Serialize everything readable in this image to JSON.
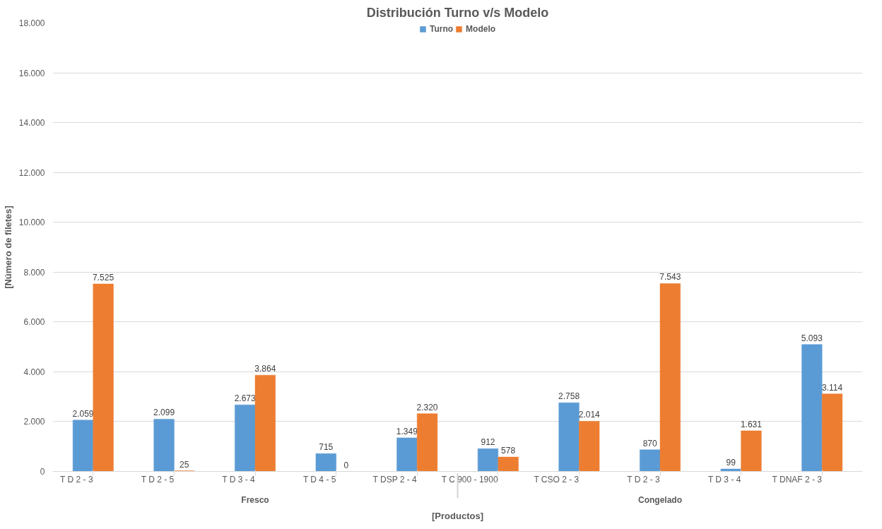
{
  "chart_data": {
    "type": "bar",
    "title": "Distribución Turno v/s Modelo",
    "xlabel": "[Productos]",
    "ylabel": "[Número de filetes]",
    "categories": [
      "T D 2 - 3",
      "T D 2 - 5",
      "T D 3 - 4",
      "T D 4 - 5",
      "T DSP 2 - 4",
      "T C 900 - 1900",
      "T CSO 2 - 3",
      "T D 2 - 3",
      "T D 3 - 4",
      "T DNAF 2 - 3"
    ],
    "series": [
      {
        "name": "Turno",
        "color": "#5b9bd5",
        "values": [
          2059,
          2099,
          2673,
          715,
          1349,
          912,
          2758,
          870,
          99,
          5093
        ],
        "value_labels": [
          "2.059",
          "2.099",
          "2.673",
          "715",
          "1.349",
          "912",
          "2.758",
          "870",
          "99",
          "5.093"
        ]
      },
      {
        "name": "Modelo",
        "color": "#ed7d31",
        "values": [
          7525,
          25,
          3864,
          0,
          2320,
          578,
          2014,
          7543,
          1631,
          3114
        ],
        "value_labels": [
          "7.525",
          "25",
          "3.864",
          "0",
          "2.320",
          "578",
          "2.014",
          "7.543",
          "1.631",
          "3.114"
        ]
      }
    ],
    "annotations": [
      "Fresco",
      "Congelado"
    ],
    "ylim": [
      0,
      18000
    ],
    "yticks": [
      {
        "value": 0,
        "label": "0"
      },
      {
        "value": 2000,
        "label": "2.000"
      },
      {
        "value": 4000,
        "label": "4.000"
      },
      {
        "value": 6000,
        "label": "6.000"
      },
      {
        "value": 8000,
        "label": "8.000"
      },
      {
        "value": 10000,
        "label": "10.000"
      },
      {
        "value": 12000,
        "label": "12.000"
      },
      {
        "value": 14000,
        "label": "14.000"
      },
      {
        "value": 16000,
        "label": "16.000"
      },
      {
        "value": 18000,
        "label": "18.000"
      }
    ],
    "grid": "y",
    "legend": "top"
  }
}
